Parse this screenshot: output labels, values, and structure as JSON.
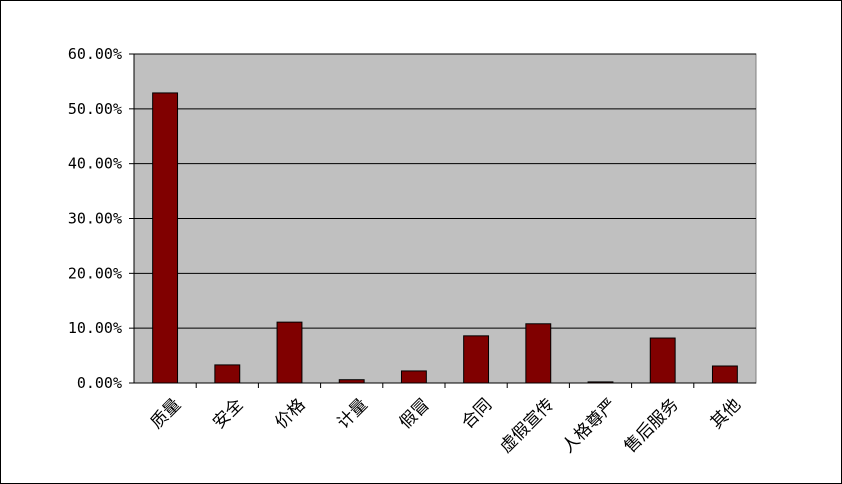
{
  "chart_data": {
    "type": "bar",
    "title": "",
    "xlabel": "",
    "ylabel": "",
    "categories": [
      "质量",
      "安全",
      "价格",
      "计量",
      "假冒",
      "合同",
      "虚假宣传",
      "人格尊严",
      "售后服务",
      "其他"
    ],
    "values": [
      52.9,
      3.3,
      11.1,
      0.6,
      2.2,
      8.6,
      10.8,
      0.2,
      8.2,
      3.1
    ],
    "ylim": [
      0,
      60
    ],
    "yticks": [
      0,
      10,
      20,
      30,
      40,
      50,
      60
    ],
    "ytick_labels": [
      "0.00%",
      "10.00%",
      "20.00%",
      "30.00%",
      "40.00%",
      "50.00%",
      "60.00%"
    ],
    "grid": true,
    "legend": "none",
    "colors": {
      "bar": "#800000",
      "plot_background": "#c0c0c0",
      "gridline": "#000000"
    }
  }
}
